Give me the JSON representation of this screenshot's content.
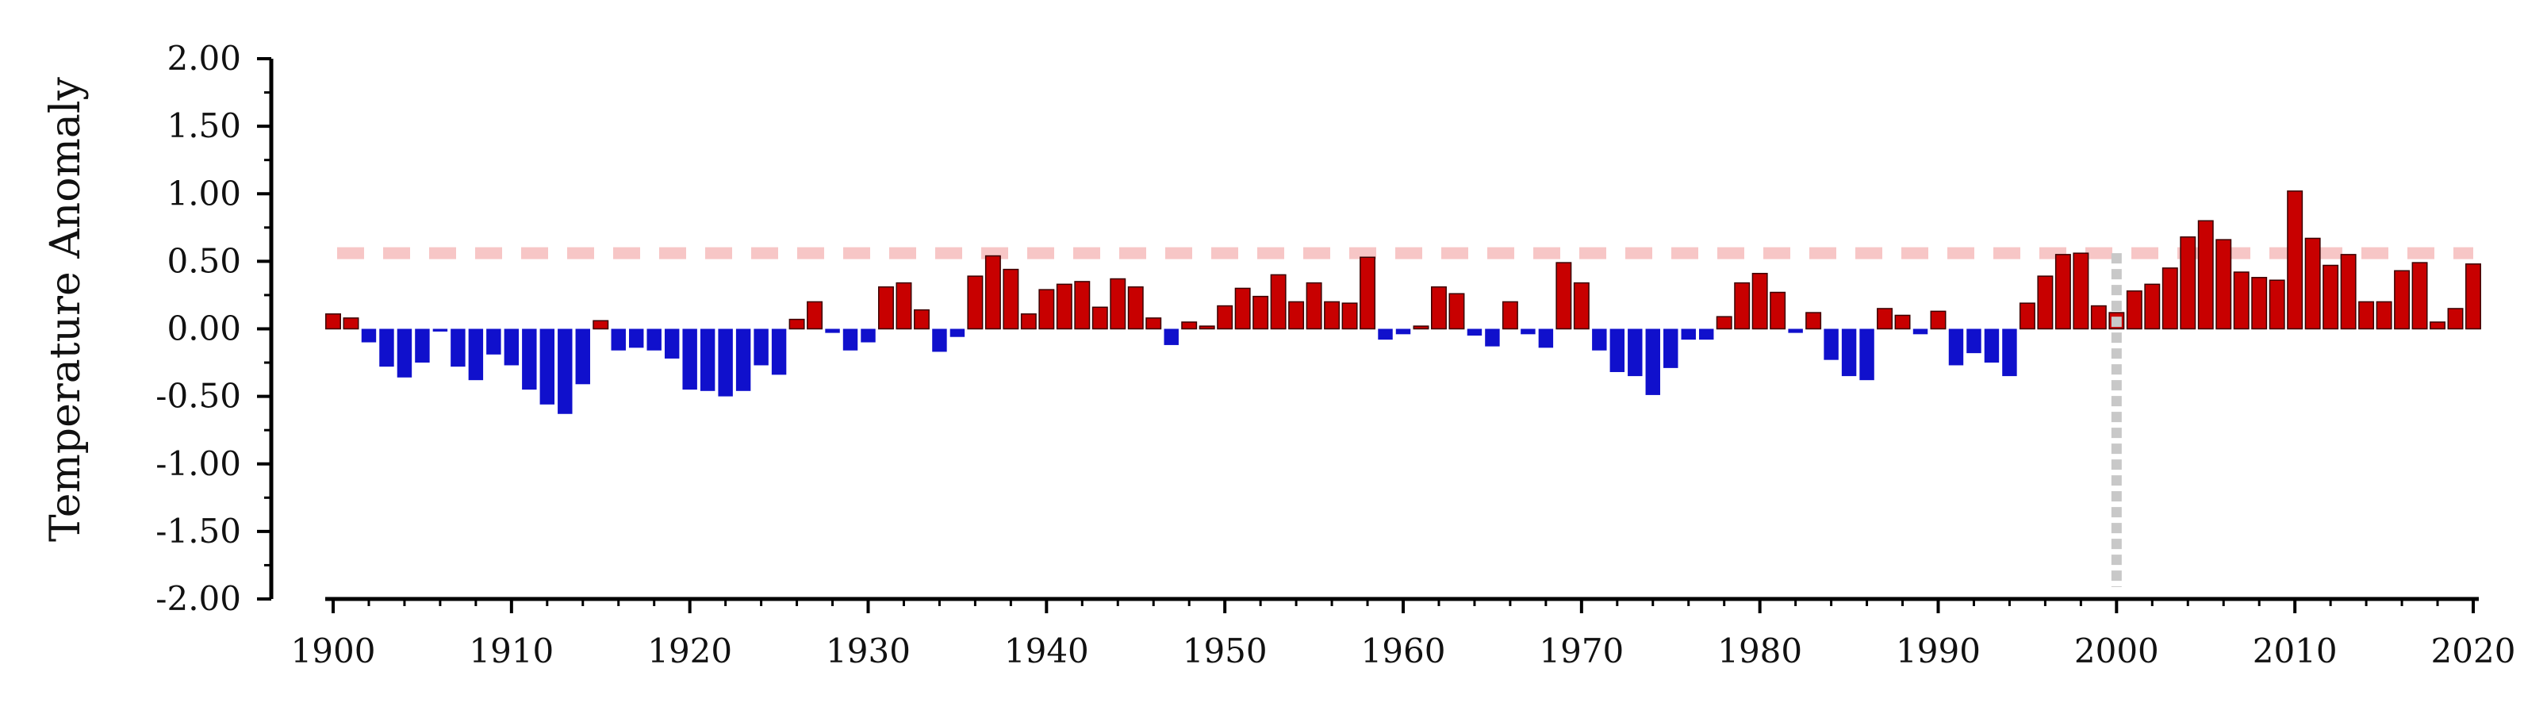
{
  "chart_data": {
    "type": "bar",
    "title": "",
    "xlabel": "",
    "ylabel": "Temperature Anomaly",
    "ylim": [
      -2.0,
      2.0
    ],
    "xlim": [
      1900,
      2020
    ],
    "y_ticks": [
      "2.00",
      "1.50",
      "1.00",
      "0.50",
      "0.00",
      "-0.50",
      "-1.00",
      "-1.50",
      "-2.00"
    ],
    "x_ticks": [
      "1900",
      "1910",
      "1920",
      "1930",
      "1940",
      "1950",
      "1960",
      "1970",
      "1980",
      "1990",
      "2000",
      "2010",
      "2020"
    ],
    "grid": false,
    "legend": "none",
    "reference_line": {
      "y": 0.56,
      "style": "dashed",
      "color": "#f7c6c6"
    },
    "marker_line": {
      "x": 2000,
      "style": "dotted",
      "color": "#c8c8c8"
    },
    "colors": {
      "positive": "#c80000",
      "negative": "#1010cc",
      "axis": "#000000"
    },
    "x": [
      1900,
      1901,
      1902,
      1903,
      1904,
      1905,
      1906,
      1907,
      1908,
      1909,
      1910,
      1911,
      1912,
      1913,
      1914,
      1915,
      1916,
      1917,
      1918,
      1919,
      1920,
      1921,
      1922,
      1923,
      1924,
      1925,
      1926,
      1927,
      1928,
      1929,
      1930,
      1931,
      1932,
      1933,
      1934,
      1935,
      1936,
      1937,
      1938,
      1939,
      1940,
      1941,
      1942,
      1943,
      1944,
      1945,
      1946,
      1947,
      1948,
      1949,
      1950,
      1951,
      1952,
      1953,
      1954,
      1955,
      1956,
      1957,
      1958,
      1959,
      1960,
      1961,
      1962,
      1963,
      1964,
      1965,
      1966,
      1967,
      1968,
      1969,
      1970,
      1971,
      1972,
      1973,
      1974,
      1975,
      1976,
      1977,
      1978,
      1979,
      1980,
      1981,
      1982,
      1983,
      1984,
      1985,
      1986,
      1987,
      1988,
      1989,
      1990,
      1991,
      1992,
      1993,
      1994,
      1995,
      1996,
      1997,
      1998,
      1999,
      2000,
      2001,
      2002,
      2003,
      2004,
      2005,
      2006,
      2007,
      2008,
      2009,
      2010,
      2011,
      2012,
      2013,
      2014,
      2015,
      2016,
      2017,
      2018,
      2019,
      2020
    ],
    "values": [
      0.11,
      0.08,
      -0.1,
      -0.28,
      -0.36,
      -0.25,
      -0.02,
      -0.28,
      -0.38,
      -0.19,
      -0.27,
      -0.45,
      -0.56,
      -0.63,
      -0.41,
      0.06,
      -0.16,
      -0.14,
      -0.16,
      -0.22,
      -0.45,
      -0.46,
      -0.5,
      -0.46,
      -0.27,
      -0.34,
      0.07,
      0.2,
      -0.03,
      -0.16,
      -0.1,
      0.31,
      0.34,
      0.14,
      -0.17,
      -0.06,
      0.39,
      0.54,
      0.44,
      0.11,
      0.29,
      0.33,
      0.35,
      0.16,
      0.37,
      0.31,
      0.08,
      -0.12,
      0.05,
      0.02,
      0.17,
      0.3,
      0.24,
      0.4,
      0.2,
      0.34,
      0.2,
      0.19,
      0.53,
      -0.08,
      -0.04,
      0.02,
      0.31,
      0.26,
      -0.05,
      -0.13,
      0.2,
      -0.04,
      -0.14,
      0.49,
      0.34,
      -0.16,
      -0.32,
      -0.35,
      -0.49,
      -0.29,
      -0.08,
      -0.08,
      0.09,
      0.34,
      0.41,
      0.27,
      -0.03,
      0.12,
      -0.23,
      -0.35,
      -0.38,
      0.15,
      0.1,
      -0.04,
      0.13,
      -0.27,
      -0.18,
      -0.25,
      -0.35,
      0.19,
      0.39,
      0.55,
      0.56,
      0.17,
      0.12,
      0.28,
      0.33,
      0.45,
      0.68,
      0.8,
      0.66,
      0.42,
      0.38,
      0.36,
      1.02,
      0.67,
      0.47,
      0.55,
      0.2,
      0.2,
      0.43,
      0.49,
      0.05,
      0.15,
      0.48
    ]
  }
}
